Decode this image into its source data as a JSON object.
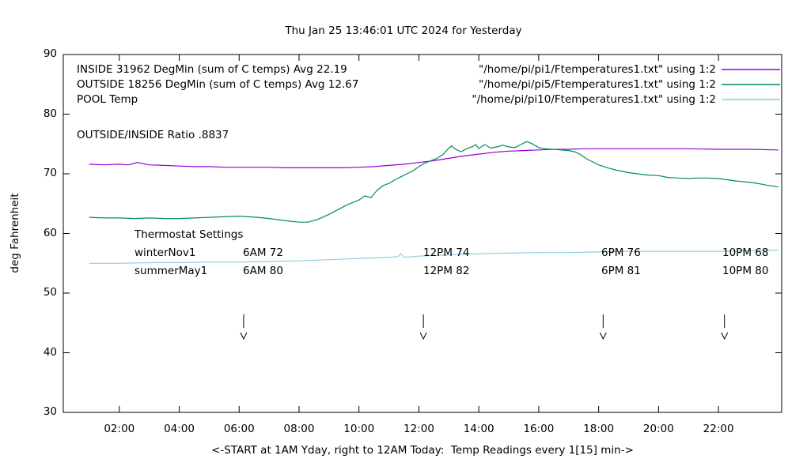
{
  "window": {
    "title": "Thu Jan 25 13:46:01 UTC 2024 for Yesterday"
  },
  "annotations": {
    "ratio": "OUTSIDE/INSIDE Ratio .8837",
    "thermostat": {
      "heading": "Thermostat Settings",
      "rows": [
        {
          "name": "winterNov1",
          "cells": [
            "6AM 72",
            "12PM 74",
            "6PM 76",
            "10PM 68"
          ]
        },
        {
          "name": "summerMay1",
          "cells": [
            "6AM 80",
            "12PM 82",
            "6PM 81",
            "10PM 80"
          ]
        }
      ]
    }
  },
  "legend": {
    "entries": [
      {
        "label": "INSIDE 31962 DegMin (sum of C temps) Avg 22.19",
        "file": "\"/home/pi/pi1/Ftemperatures1.txt\" using 1:2",
        "color": "#9400d3"
      },
      {
        "label": "OUTSIDE 18256 DegMin (sum of C temps) Avg 12.67",
        "file": "\"/home/pi/pi5/Ftemperatures1.txt\" using 1:2",
        "color": "#008c64"
      },
      {
        "label": "POOL Temp",
        "file": "\"/home/pi/pi10/Ftemperatures1.txt\" using 1:2",
        "color": "#8ccfdf"
      }
    ]
  },
  "chart_data": {
    "type": "line",
    "title": "Thu Jan 25 13:46:01 UTC 2024 for Yesterday",
    "xlabel": "<-START at 1AM Yday, right to 12AM Today:  Temp Readings every 1[15] min->",
    "ylabel": "deg Fahrenheit",
    "ylim": [
      30,
      90
    ],
    "x_hours_range": [
      1,
      24
    ],
    "grid": false,
    "legend_position": "top-left-inside",
    "x_ticks": [
      {
        "value": 2,
        "label": "02:00"
      },
      {
        "value": 4,
        "label": "04:00"
      },
      {
        "value": 6,
        "label": "06:00"
      },
      {
        "value": 8,
        "label": "08:00"
      },
      {
        "value": 10,
        "label": "10:00"
      },
      {
        "value": 12,
        "label": "12:00"
      },
      {
        "value": 14,
        "label": "14:00"
      },
      {
        "value": 16,
        "label": "16:00"
      },
      {
        "value": 18,
        "label": "18:00"
      },
      {
        "value": 20,
        "label": "20:00"
      },
      {
        "value": 22,
        "label": "22:00"
      }
    ],
    "y_ticks": [
      {
        "value": 30,
        "label": "30"
      },
      {
        "value": 40,
        "label": "40"
      },
      {
        "value": 50,
        "label": "50"
      },
      {
        "value": 60,
        "label": "60"
      },
      {
        "value": 70,
        "label": "70"
      },
      {
        "value": 80,
        "label": "80"
      },
      {
        "value": 90,
        "label": "90"
      }
    ],
    "arrows_hours": [
      6.15,
      12.15,
      18.15,
      22.2
    ],
    "series": [
      {
        "id": "inside",
        "name": "INSIDE",
        "color": "#9400d3",
        "points": [
          [
            1,
            71.6
          ],
          [
            1.5,
            71.5
          ],
          [
            2,
            71.6
          ],
          [
            2.3,
            71.5
          ],
          [
            2.6,
            71.9
          ],
          [
            2.8,
            71.7
          ],
          [
            3,
            71.5
          ],
          [
            3.5,
            71.4
          ],
          [
            4,
            71.3
          ],
          [
            4.5,
            71.2
          ],
          [
            5,
            71.2
          ],
          [
            5.5,
            71.1
          ],
          [
            6,
            71.1
          ],
          [
            6.5,
            71.1
          ],
          [
            7,
            71.1
          ],
          [
            7.5,
            71.0
          ],
          [
            8,
            71.0
          ],
          [
            8.5,
            71.0
          ],
          [
            9,
            71.0
          ],
          [
            9.5,
            71.0
          ],
          [
            10,
            71.1
          ],
          [
            10.5,
            71.2
          ],
          [
            11,
            71.4
          ],
          [
            11.5,
            71.6
          ],
          [
            12,
            71.9
          ],
          [
            12.5,
            72.2
          ],
          [
            13,
            72.6
          ],
          [
            13.5,
            73.0
          ],
          [
            14,
            73.3
          ],
          [
            14.5,
            73.6
          ],
          [
            15,
            73.8
          ],
          [
            15.5,
            73.9
          ],
          [
            16,
            74.0
          ],
          [
            16.5,
            74.1
          ],
          [
            17,
            74.1
          ],
          [
            17.5,
            74.2
          ],
          [
            18,
            74.2
          ],
          [
            19,
            74.2
          ],
          [
            20,
            74.2
          ],
          [
            21,
            74.2
          ],
          [
            22,
            74.1
          ],
          [
            23,
            74.1
          ],
          [
            24,
            74.0
          ]
        ]
      },
      {
        "id": "outside",
        "name": "OUTSIDE",
        "color": "#008c64",
        "points": [
          [
            1,
            62.7
          ],
          [
            1.5,
            62.6
          ],
          [
            2,
            62.6
          ],
          [
            2.5,
            62.5
          ],
          [
            3,
            62.6
          ],
          [
            3.5,
            62.5
          ],
          [
            4,
            62.5
          ],
          [
            4.5,
            62.6
          ],
          [
            5,
            62.7
          ],
          [
            5.5,
            62.8
          ],
          [
            6,
            62.9
          ],
          [
            6.3,
            62.8
          ],
          [
            6.6,
            62.7
          ],
          [
            7,
            62.5
          ],
          [
            7.3,
            62.3
          ],
          [
            7.6,
            62.1
          ],
          [
            8,
            61.9
          ],
          [
            8.3,
            61.9
          ],
          [
            8.6,
            62.3
          ],
          [
            9,
            63.2
          ],
          [
            9.3,
            64.0
          ],
          [
            9.6,
            64.8
          ],
          [
            10,
            65.6
          ],
          [
            10.2,
            66.3
          ],
          [
            10.4,
            66.0
          ],
          [
            10.6,
            67.2
          ],
          [
            10.8,
            68.0
          ],
          [
            11,
            68.4
          ],
          [
            11.2,
            69.0
          ],
          [
            11.4,
            69.5
          ],
          [
            11.6,
            70.0
          ],
          [
            11.8,
            70.5
          ],
          [
            12,
            71.2
          ],
          [
            12.2,
            71.8
          ],
          [
            12.4,
            72.2
          ],
          [
            12.6,
            72.6
          ],
          [
            12.8,
            73.2
          ],
          [
            13,
            74.3
          ],
          [
            13.1,
            74.7
          ],
          [
            13.2,
            74.2
          ],
          [
            13.4,
            73.7
          ],
          [
            13.6,
            74.2
          ],
          [
            13.8,
            74.6
          ],
          [
            13.9,
            74.9
          ],
          [
            14,
            74.2
          ],
          [
            14.1,
            74.6
          ],
          [
            14.2,
            74.9
          ],
          [
            14.4,
            74.3
          ],
          [
            14.6,
            74.5
          ],
          [
            14.8,
            74.8
          ],
          [
            15,
            74.5
          ],
          [
            15.2,
            74.4
          ],
          [
            15.4,
            74.9
          ],
          [
            15.6,
            75.4
          ],
          [
            15.8,
            75.0
          ],
          [
            16,
            74.4
          ],
          [
            16.2,
            74.2
          ],
          [
            16.5,
            74.1
          ],
          [
            17,
            73.9
          ],
          [
            17.2,
            73.7
          ],
          [
            17.4,
            73.2
          ],
          [
            17.6,
            72.5
          ],
          [
            17.8,
            72.0
          ],
          [
            18,
            71.5
          ],
          [
            18.3,
            71.0
          ],
          [
            18.6,
            70.6
          ],
          [
            19,
            70.2
          ],
          [
            19.3,
            70.0
          ],
          [
            19.6,
            69.8
          ],
          [
            20,
            69.7
          ],
          [
            20.3,
            69.4
          ],
          [
            20.6,
            69.3
          ],
          [
            21,
            69.2
          ],
          [
            21.3,
            69.3
          ],
          [
            21.6,
            69.3
          ],
          [
            22,
            69.2
          ],
          [
            22.3,
            69.0
          ],
          [
            22.6,
            68.8
          ],
          [
            23,
            68.6
          ],
          [
            23.3,
            68.4
          ],
          [
            23.6,
            68.1
          ],
          [
            24,
            67.8
          ]
        ]
      },
      {
        "id": "pool",
        "name": "POOL",
        "color": "#8ccfdf",
        "points": [
          [
            1,
            55.0
          ],
          [
            2,
            55.0
          ],
          [
            3,
            55.1
          ],
          [
            4,
            55.1
          ],
          [
            5,
            55.2
          ],
          [
            6,
            55.2
          ],
          [
            7,
            55.3
          ],
          [
            8,
            55.4
          ],
          [
            9,
            55.6
          ],
          [
            10,
            55.8
          ],
          [
            10.5,
            55.9
          ],
          [
            11,
            56.0
          ],
          [
            11.3,
            56.1
          ],
          [
            11.4,
            56.6
          ],
          [
            11.5,
            56.0
          ],
          [
            12,
            56.2
          ],
          [
            12.5,
            56.3
          ],
          [
            13,
            56.4
          ],
          [
            13.5,
            56.5
          ],
          [
            14,
            56.6
          ],
          [
            15,
            56.7
          ],
          [
            16,
            56.8
          ],
          [
            17,
            56.8
          ],
          [
            18,
            56.9
          ],
          [
            19,
            57.0
          ],
          [
            20,
            57.0
          ],
          [
            21,
            57.0
          ],
          [
            22,
            57.0
          ],
          [
            23,
            57.1
          ],
          [
            24,
            57.2
          ]
        ]
      }
    ]
  }
}
